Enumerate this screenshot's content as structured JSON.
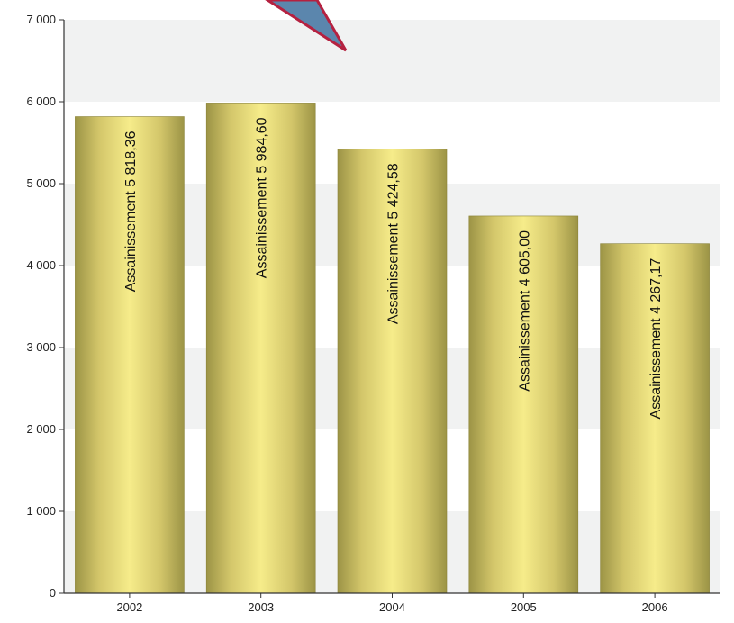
{
  "chart_data": {
    "type": "bar",
    "categories": [
      "2002",
      "2003",
      "2004",
      "2005",
      "2006"
    ],
    "series": [
      {
        "name": "Assainissement",
        "values": [
          5818.36,
          5984.6,
          5424.58,
          4605.0,
          4267.17
        ]
      }
    ],
    "data_labels": [
      "Assainissement 5 818,36",
      "Assainissement 5 984,60",
      "Assainissement 5 424,58",
      "Assainissement 4 605,00",
      "Assainissement 4 267,17"
    ],
    "y_ticks": [
      "0",
      "1 000",
      "2 000",
      "3 000",
      "4 000",
      "5 000",
      "6 000",
      "7 000"
    ],
    "ylim": [
      0,
      7000
    ],
    "grid": "alternating horizontal bands",
    "colors": {
      "bar_edge": "#9c9446",
      "bar_center": "#f6ec8a",
      "band": "#f1f2f2",
      "axis": "#333333",
      "arrow_fill": "#5b86ad",
      "arrow_stroke": "#b52140"
    }
  },
  "decorations": {
    "pointer_arrow": "arrow-icon"
  }
}
